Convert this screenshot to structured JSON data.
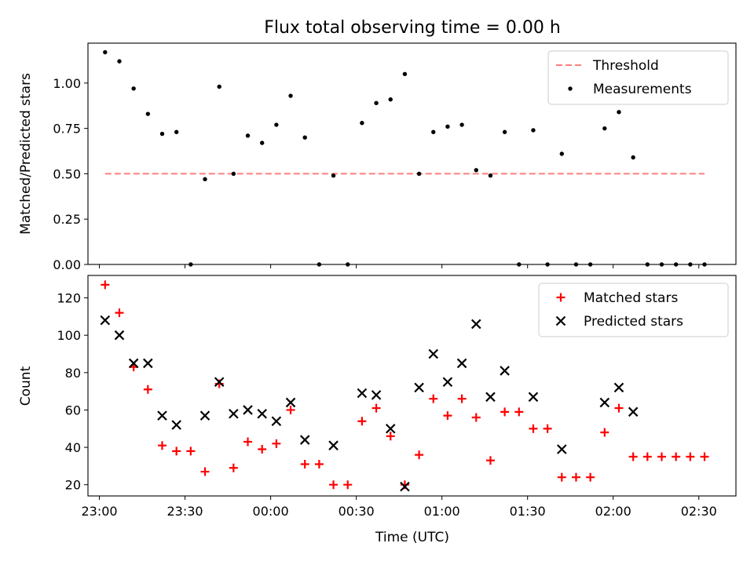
{
  "figure": {
    "title": "Flux total observing time = 0.00 h",
    "xlabel": "Time (UTC)"
  },
  "chart_data": [
    {
      "type": "scatter",
      "panel": "top",
      "ylabel": "Matched/Predicted stars",
      "ylim": [
        0,
        1.22
      ],
      "yticks": [
        0.0,
        0.25,
        0.5,
        0.75,
        1.0
      ],
      "ytick_labels": [
        "0.00",
        "0.25",
        "0.50",
        "0.75",
        "1.00"
      ],
      "xlim": [
        "22:56",
        "02:43"
      ],
      "xticks": [
        "23:00",
        "23:30",
        "00:00",
        "00:30",
        "01:00",
        "01:30",
        "02:00",
        "02:30"
      ],
      "xtick_labels_shown": false,
      "grid": false,
      "legend_position": "top-right",
      "series": [
        {
          "name": "Threshold",
          "style": "dashed-line",
          "color": "#ff7f7f",
          "x": [
            "23:02",
            "02:32"
          ],
          "y": [
            0.5,
            0.5
          ]
        },
        {
          "name": "Measurements",
          "style": "dot",
          "color": "#000000",
          "x": [
            "23:02",
            "23:07",
            "23:12",
            "23:17",
            "23:22",
            "23:27",
            "23:32",
            "23:37",
            "23:42",
            "23:47",
            "23:52",
            "23:57",
            "00:02",
            "00:07",
            "00:12",
            "00:17",
            "00:22",
            "00:27",
            "00:32",
            "00:37",
            "00:42",
            "00:47",
            "00:52",
            "00:57",
            "01:02",
            "01:07",
            "01:12",
            "01:17",
            "01:22",
            "01:27",
            "01:32",
            "01:37",
            "01:42",
            "01:47",
            "01:52",
            "01:57",
            "02:02",
            "02:07",
            "02:12",
            "02:17",
            "02:22",
            "02:27",
            "02:32"
          ],
          "y": [
            1.17,
            1.12,
            0.97,
            0.83,
            0.72,
            0.73,
            0.0,
            0.47,
            0.98,
            0.5,
            0.71,
            0.67,
            0.77,
            0.93,
            0.7,
            0.0,
            0.49,
            0.0,
            0.78,
            0.89,
            0.91,
            1.05,
            0.5,
            0.73,
            0.76,
            0.77,
            0.52,
            0.49,
            0.73,
            0.0,
            0.74,
            0.0,
            0.61,
            0.0,
            0.0,
            0.75,
            0.84,
            0.59,
            0.0,
            0.0,
            0.0,
            0.0,
            0.0
          ]
        }
      ]
    },
    {
      "type": "scatter",
      "panel": "bottom",
      "ylabel": "Count",
      "ylim": [
        14,
        132
      ],
      "yticks": [
        20,
        40,
        60,
        80,
        100,
        120
      ],
      "ytick_labels": [
        "20",
        "40",
        "60",
        "80",
        "100",
        "120"
      ],
      "xlim": [
        "22:56",
        "02:43"
      ],
      "xticks": [
        "23:00",
        "23:30",
        "00:00",
        "00:30",
        "01:00",
        "01:30",
        "02:00",
        "02:30"
      ],
      "xtick_labels": [
        "23:00",
        "23:30",
        "00:00",
        "00:30",
        "01:00",
        "01:30",
        "02:00",
        "02:30"
      ],
      "grid": false,
      "legend_position": "top-right",
      "series": [
        {
          "name": "Matched stars",
          "marker": "plus",
          "color": "#ff0000",
          "x": [
            "23:02",
            "23:07",
            "23:12",
            "23:17",
            "23:22",
            "23:27",
            "23:32",
            "23:37",
            "23:42",
            "23:47",
            "23:52",
            "23:57",
            "00:02",
            "00:07",
            "00:12",
            "00:17",
            "00:22",
            "00:27",
            "00:32",
            "00:37",
            "00:42",
            "00:47",
            "00:52",
            "00:57",
            "01:02",
            "01:07",
            "01:12",
            "01:17",
            "01:22",
            "01:27",
            "01:32",
            "01:37",
            "01:42",
            "01:47",
            "01:52",
            "01:57",
            "02:02",
            "02:07",
            "02:12",
            "02:17",
            "02:22",
            "02:27",
            "02:32"
          ],
          "y": [
            127,
            112,
            83,
            71,
            41,
            38,
            38,
            27,
            74,
            29,
            43,
            39,
            42,
            60,
            31,
            31,
            20,
            20,
            54,
            61,
            46,
            20,
            36,
            66,
            57,
            66,
            56,
            33,
            59,
            59,
            50,
            50,
            24,
            24,
            24,
            48,
            61,
            35,
            35,
            35,
            35,
            35,
            35
          ]
        },
        {
          "name": "Predicted stars",
          "marker": "x",
          "color": "#000000",
          "x": [
            "23:02",
            "23:07",
            "23:12",
            "23:17",
            "23:22",
            "23:27",
            "23:37",
            "23:42",
            "23:47",
            "23:52",
            "23:57",
            "00:02",
            "00:07",
            "00:12",
            "00:22",
            "00:32",
            "00:37",
            "00:42",
            "00:47",
            "00:52",
            "00:57",
            "01:02",
            "01:07",
            "01:12",
            "01:17",
            "01:22",
            "01:32",
            "01:42",
            "01:57",
            "02:02",
            "02:07"
          ],
          "y": [
            108,
            100,
            85,
            85,
            57,
            52,
            57,
            75,
            58,
            60,
            58,
            54,
            64,
            44,
            41,
            69,
            68,
            50,
            19,
            72,
            90,
            75,
            85,
            106,
            67,
            81,
            67,
            39,
            64,
            72,
            59
          ]
        }
      ]
    }
  ]
}
